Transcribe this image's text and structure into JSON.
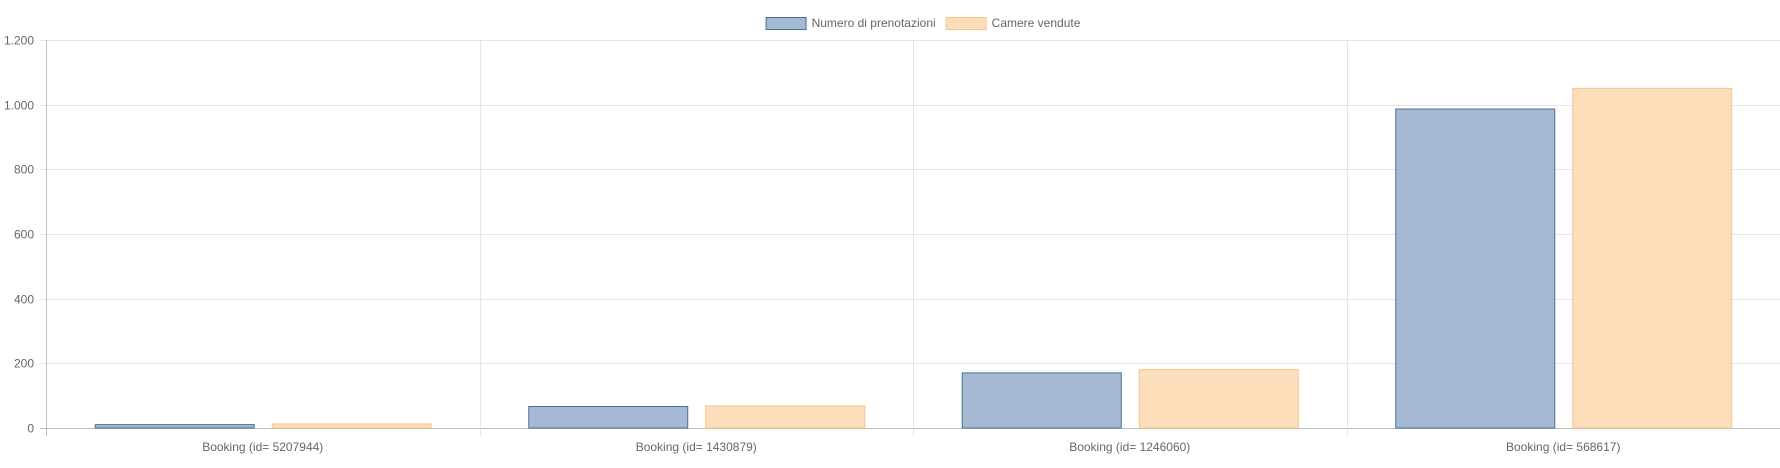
{
  "chart_data": {
    "type": "bar",
    "categories": [
      "Booking (id= 5207944)",
      "Booking (id= 1430879)",
      "Booking (id= 1246060)",
      "Booking (id= 568617)"
    ],
    "series": [
      {
        "name": "Numero di prenotazioni",
        "values": [
          12,
          68,
          172,
          988
        ],
        "fill": "#a6b9d2",
        "stroke": "#4a6f99"
      },
      {
        "name": "Camere vendute",
        "values": [
          14,
          70,
          182,
          1052
        ],
        "fill": "#fddebb",
        "stroke": "#f8c48d"
      }
    ],
    "ylim": [
      0,
      1200
    ],
    "yticks": [
      0,
      200,
      400,
      600,
      800,
      1000,
      1200
    ],
    "ytick_labels": [
      "0",
      "200",
      "400",
      "600",
      "800",
      "1.000",
      "1.200"
    ],
    "grid": true,
    "legend_position": "top-center",
    "xlabel": "",
    "ylabel": "",
    "title": ""
  }
}
